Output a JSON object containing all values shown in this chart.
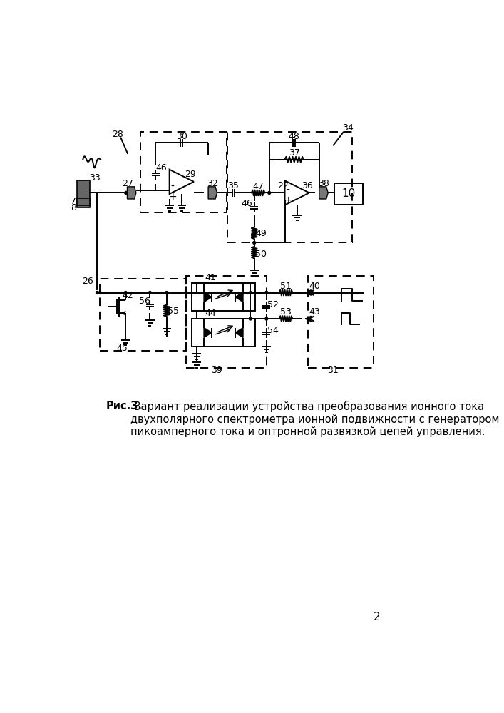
{
  "caption_bold": "Рис.3.",
  "caption_text": " Вариант реализации устройства преобразования ионного тока\nдвухполярного спектрометра ионной подвижности с генератором\nпикоамперного тока и оптронной развязкой цепей управления.",
  "page_number": "2",
  "bg_color": "#ffffff"
}
